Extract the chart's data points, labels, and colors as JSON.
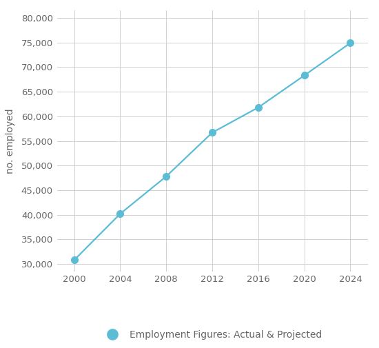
{
  "x": [
    2000,
    2004,
    2008,
    2012,
    2016,
    2020,
    2024
  ],
  "y": [
    30800,
    40200,
    47800,
    56700,
    61800,
    68300,
    74900
  ],
  "line_color": "#5bbcd6",
  "marker_color": "#5bbcd6",
  "marker_size": 7,
  "line_width": 1.6,
  "ylabel": "no. employed",
  "ylim": [
    28500,
    81500
  ],
  "yticks": [
    30000,
    35000,
    40000,
    45000,
    50000,
    55000,
    60000,
    65000,
    70000,
    75000,
    80000
  ],
  "xlim": [
    1998.5,
    2025.5
  ],
  "xticks": [
    2000,
    2004,
    2008,
    2012,
    2016,
    2020,
    2024
  ],
  "legend_label": "Employment Figures: Actual & Projected",
  "grid_color": "#d0d0d0",
  "background_color": "#ffffff",
  "tick_label_color": "#666666",
  "axis_label_color": "#666666",
  "legend_fontsize": 10,
  "ylabel_fontsize": 10,
  "tick_fontsize": 9.5
}
